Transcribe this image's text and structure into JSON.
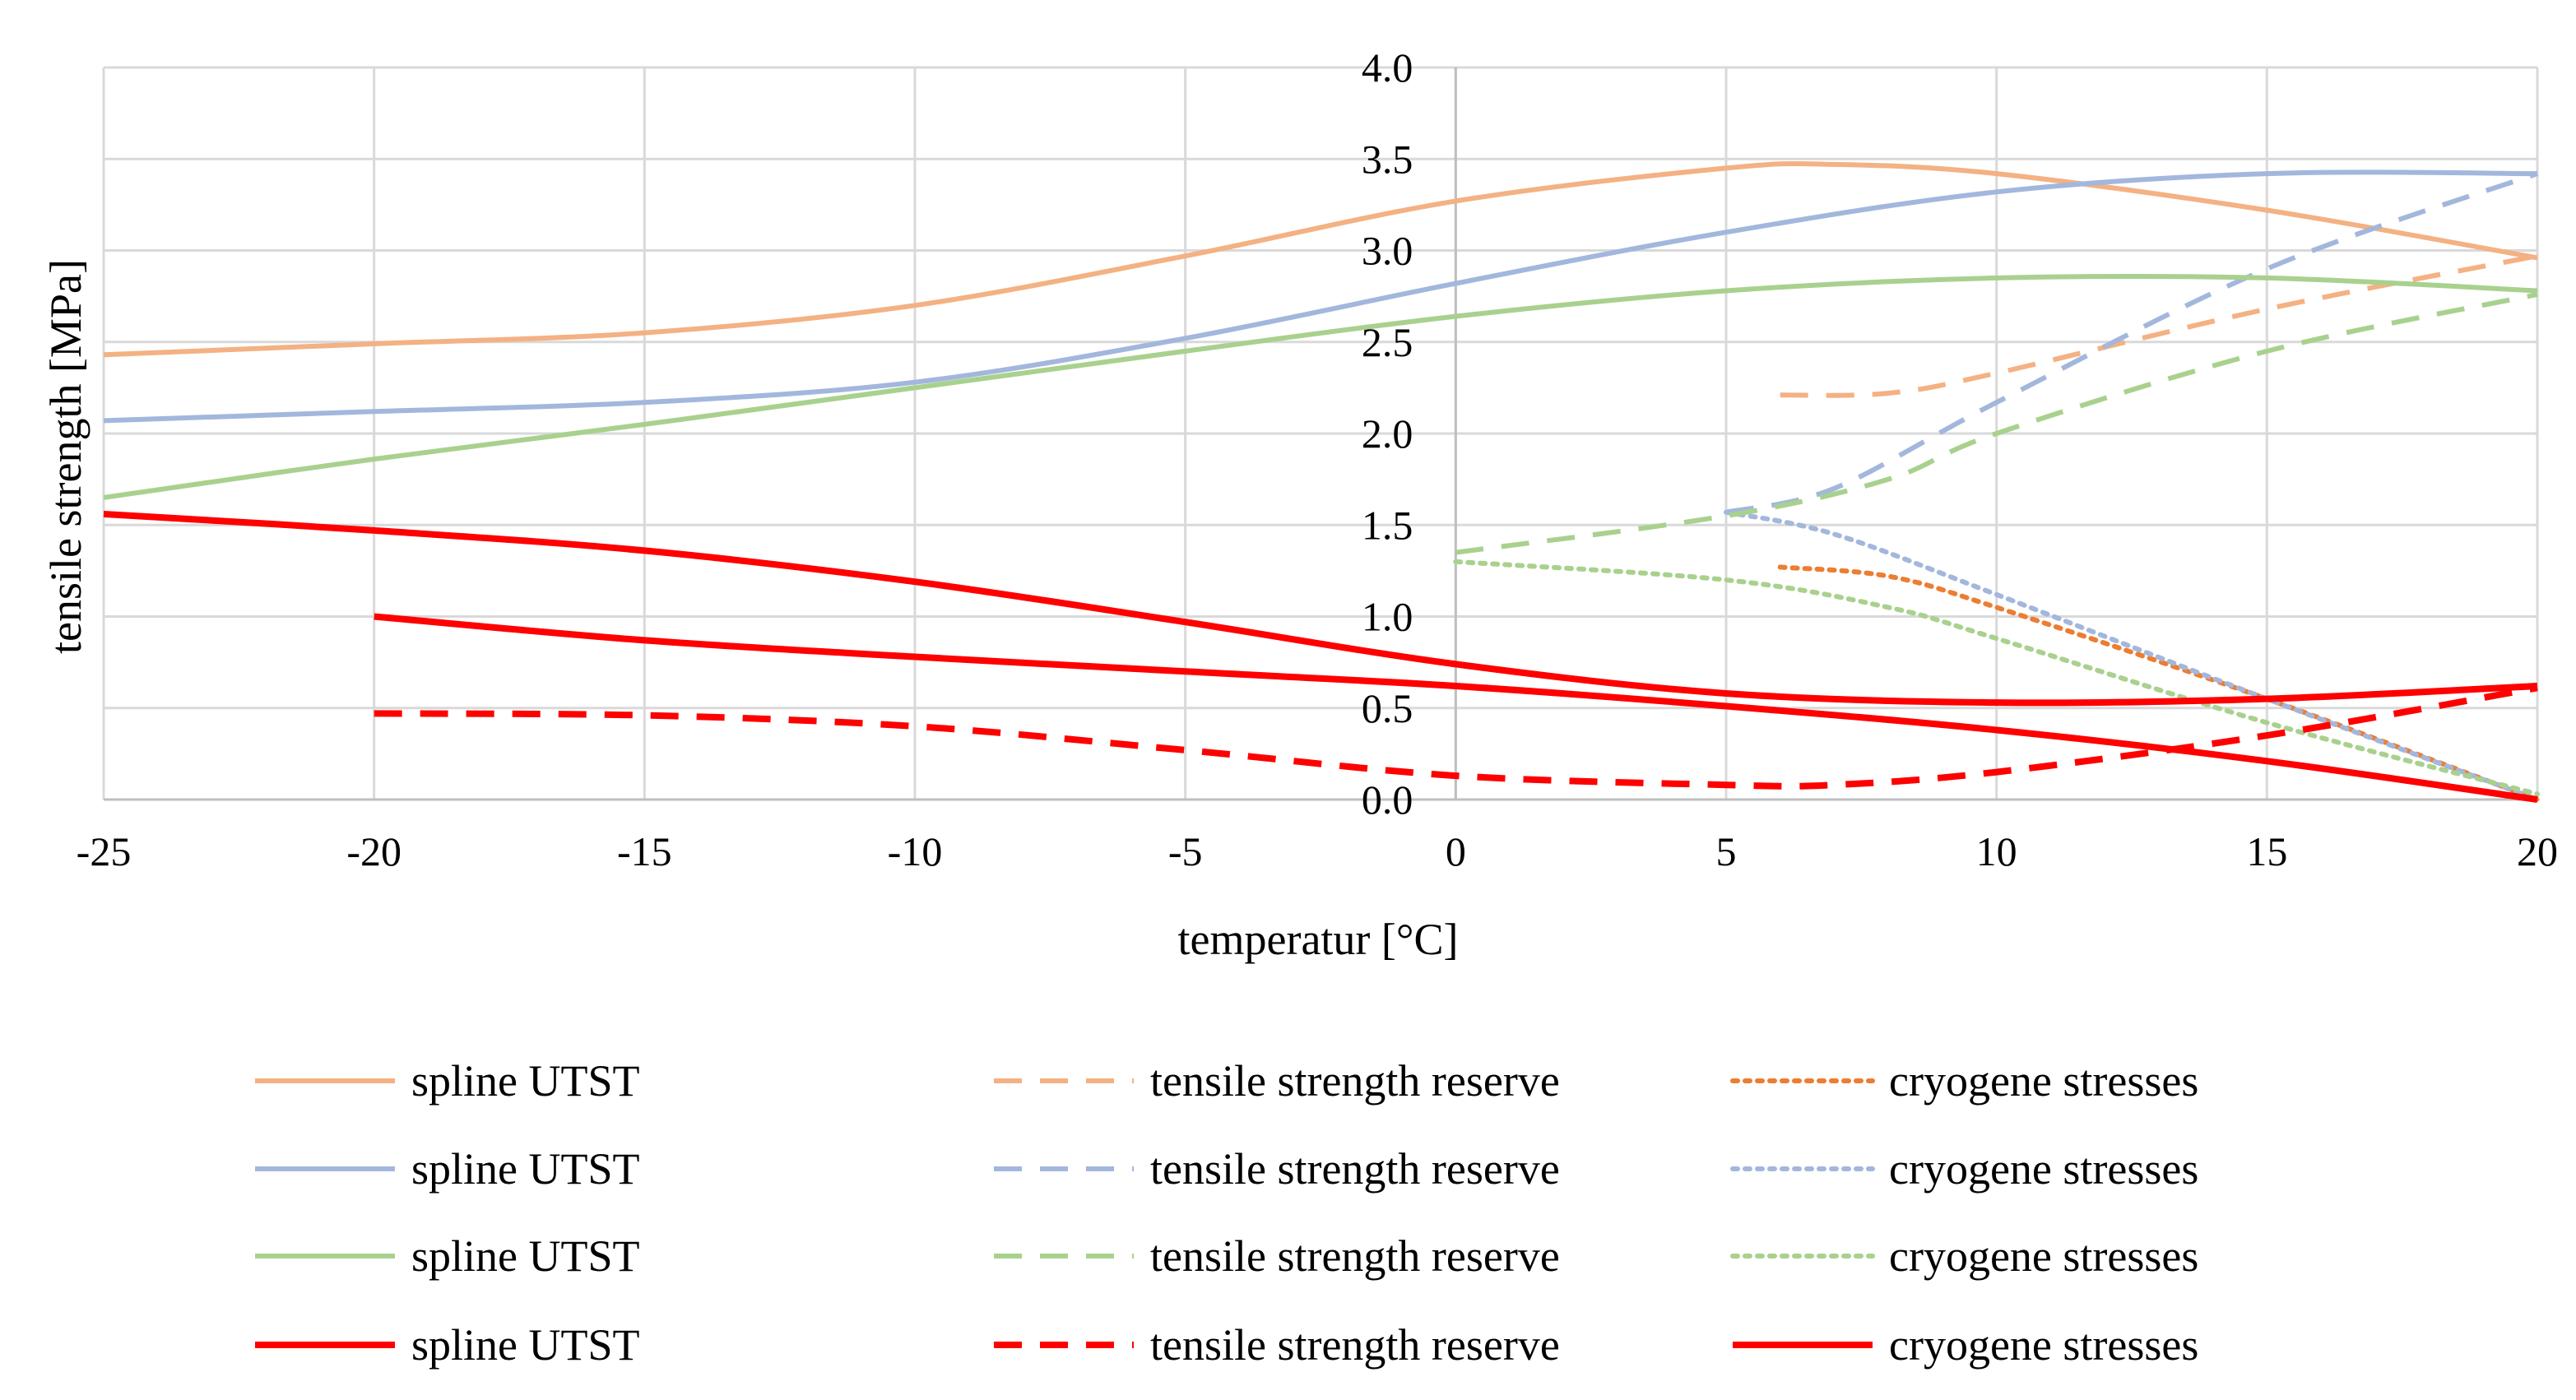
{
  "chart_data": {
    "type": "line",
    "xlabel": "temperatur [°C]",
    "ylabel": "tensile strength [MPa]",
    "xlim": [
      -25,
      20
    ],
    "ylim": [
      0,
      4
    ],
    "x_ticks": [
      "-25",
      "-20",
      "-15",
      "-10",
      "-5",
      "0",
      "5",
      "10",
      "15",
      "20"
    ],
    "y_ticks": [
      "0.0",
      "0.5",
      "1.0",
      "1.5",
      "2.0",
      "2.5",
      "3.0",
      "3.5",
      "4.0"
    ],
    "grid": true,
    "legend_position": "bottom",
    "series": [
      {
        "name": "spline UTST",
        "color": "#F4B183",
        "style": "solid",
        "points": [
          [
            -25,
            2.43
          ],
          [
            -20,
            2.49
          ],
          [
            -15,
            2.55
          ],
          [
            -10,
            2.7
          ],
          [
            -5,
            2.97
          ],
          [
            0,
            3.27
          ],
          [
            5,
            3.45
          ],
          [
            7,
            3.47
          ],
          [
            10,
            3.42
          ],
          [
            15,
            3.22
          ],
          [
            20,
            2.96
          ]
        ]
      },
      {
        "name": "tensile strength reserve",
        "color": "#F4B183",
        "style": "dashed",
        "points": [
          [
            6,
            2.21
          ],
          [
            8,
            2.22
          ],
          [
            10,
            2.33
          ],
          [
            15,
            2.68
          ],
          [
            20,
            2.97
          ]
        ]
      },
      {
        "name": "cryogene stresses",
        "color": "#ED7D31",
        "style": "dotted",
        "points": [
          [
            6,
            1.27
          ],
          [
            8,
            1.22
          ],
          [
            10,
            1.05
          ],
          [
            15,
            0.55
          ],
          [
            20,
            0.0
          ]
        ]
      },
      {
        "name": "spline UTST",
        "color": "#A3B7DD",
        "style": "solid",
        "points": [
          [
            -25,
            2.07
          ],
          [
            -20,
            2.12
          ],
          [
            -15,
            2.17
          ],
          [
            -10,
            2.28
          ],
          [
            -5,
            2.52
          ],
          [
            0,
            2.82
          ],
          [
            5,
            3.1
          ],
          [
            10,
            3.32
          ],
          [
            15,
            3.42
          ],
          [
            20,
            3.42
          ]
        ]
      },
      {
        "name": "tensile strength reserve",
        "color": "#A3B7DD",
        "style": "dashed",
        "points": [
          [
            5,
            1.57
          ],
          [
            7,
            1.7
          ],
          [
            10,
            2.17
          ],
          [
            15,
            2.9
          ],
          [
            20,
            3.42
          ]
        ]
      },
      {
        "name": "cryogene stresses",
        "color": "#A3B7DD",
        "style": "dotted",
        "points": [
          [
            5,
            1.57
          ],
          [
            7,
            1.45
          ],
          [
            10,
            1.12
          ],
          [
            15,
            0.55
          ],
          [
            20,
            0.0
          ]
        ]
      },
      {
        "name": "spline UTST",
        "color": "#A9D18E",
        "style": "solid",
        "points": [
          [
            -25,
            1.65
          ],
          [
            -20,
            1.86
          ],
          [
            -15,
            2.05
          ],
          [
            -10,
            2.25
          ],
          [
            -5,
            2.45
          ],
          [
            0,
            2.64
          ],
          [
            5,
            2.78
          ],
          [
            10,
            2.85
          ],
          [
            15,
            2.85
          ],
          [
            20,
            2.78
          ]
        ]
      },
      {
        "name": "tensile strength reserve",
        "color": "#A9D18E",
        "style": "dashed",
        "points": [
          [
            0,
            1.35
          ],
          [
            5,
            1.55
          ],
          [
            8,
            1.75
          ],
          [
            10,
            2.0
          ],
          [
            15,
            2.45
          ],
          [
            20,
            2.76
          ]
        ]
      },
      {
        "name": "cryogene stresses",
        "color": "#A9D18E",
        "style": "dotted",
        "points": [
          [
            0,
            1.3
          ],
          [
            5,
            1.2
          ],
          [
            8,
            1.05
          ],
          [
            10,
            0.88
          ],
          [
            15,
            0.42
          ],
          [
            20,
            0.03
          ]
        ]
      },
      {
        "name": "spline UTST",
        "color": "#FF0000",
        "style": "solid",
        "points": [
          [
            -25,
            1.56
          ],
          [
            -20,
            1.47
          ],
          [
            -15,
            1.36
          ],
          [
            -10,
            1.19
          ],
          [
            -5,
            0.97
          ],
          [
            0,
            0.74
          ],
          [
            5,
            0.58
          ],
          [
            10,
            0.53
          ],
          [
            15,
            0.55
          ],
          [
            20,
            0.62
          ]
        ]
      },
      {
        "name": "tensile strength reserve",
        "color": "#FF0000",
        "style": "dashed",
        "points": [
          [
            -20,
            0.47
          ],
          [
            -15,
            0.46
          ],
          [
            -10,
            0.4
          ],
          [
            -5,
            0.27
          ],
          [
            0,
            0.13
          ],
          [
            5,
            0.08
          ],
          [
            7,
            0.08
          ],
          [
            10,
            0.15
          ],
          [
            15,
            0.35
          ],
          [
            20,
            0.61
          ]
        ]
      },
      {
        "name": "cryogene stresses",
        "color": "#FF0000",
        "style": "solid",
        "points": [
          [
            -20,
            1.0
          ],
          [
            -15,
            0.87
          ],
          [
            -10,
            0.78
          ],
          [
            -5,
            0.7
          ],
          [
            0,
            0.62
          ],
          [
            5,
            0.51
          ],
          [
            10,
            0.38
          ],
          [
            15,
            0.21
          ],
          [
            20,
            0.0
          ]
        ]
      }
    ]
  }
}
